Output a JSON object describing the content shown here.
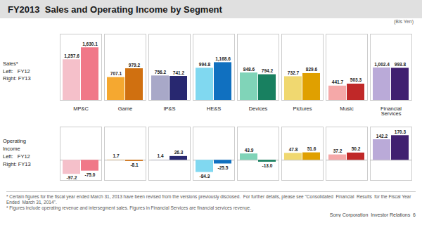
{
  "chart_data": [
    {
      "type": "bar",
      "title": "FY2013  Sales and Operating Income by Segment",
      "categories": [
        "MP&C",
        "Game",
        "IP&S",
        "HE&S",
        "Devices",
        "Pictures",
        "Music",
        "Financial\nServices"
      ],
      "series": [
        {
          "name": "FY12",
          "colors": [
            "#f5c0ca",
            "#f5a830",
            "#a8a8c8",
            "#80d8f0",
            "#80d4b8",
            "#f0d870",
            "#f5a8a8",
            "#baaad8"
          ],
          "values": [
            1257.6,
            707.1,
            756.2,
            994.8,
            848.6,
            732.7,
            441.7,
            1002.4
          ],
          "value_labels": [
            "1,257.6",
            "707.1",
            "756.2",
            "994.8",
            "848.6",
            "732.7",
            "441.7",
            "1,002.4"
          ]
        },
        {
          "name": "FY13",
          "colors": [
            "#f07888",
            "#d07010",
            "#282870",
            "#1070c0",
            "#188060",
            "#e0a000",
            "#c02828",
            "#402070"
          ],
          "values": [
            1630.1,
            979.2,
            741.2,
            1168.6,
            794.2,
            829.6,
            503.3,
            993.8
          ],
          "value_labels": [
            "1,630.1",
            "979.2",
            "741.2",
            "1,168.6",
            "794.2",
            "829.6",
            "503.3",
            "993.8"
          ]
        }
      ],
      "ylabel": "Sales*\nLeft:   FY12\nRight: FY13",
      "ylim": [
        0,
        2050
      ],
      "data_labels": true,
      "tick_labels": "x",
      "annotations": [
        "(Bls Yen)"
      ]
    },
    {
      "type": "bar",
      "categories": [
        "MP&C",
        "Game",
        "IP&S",
        "HE&S",
        "Devices",
        "Pictures",
        "Music",
        "Financial\nServices"
      ],
      "series": [
        {
          "name": "FY12",
          "colors": [
            "#f5c0ca",
            "#f5a830",
            "#a8a8c8",
            "#80d8f0",
            "#80d4b8",
            "#f0d870",
            "#f5a8a8",
            "#baaad8"
          ],
          "values": [
            -97.2,
            1.7,
            1.4,
            -84.3,
            43.9,
            47.8,
            37.2,
            142.2
          ],
          "value_labels": [
            "-97.2",
            "1.7",
            "1.4",
            "-84.3",
            "43.9",
            "47.8",
            "37.2",
            "142.2"
          ]
        },
        {
          "name": "FY13",
          "colors": [
            "#f07888",
            "#d07010",
            "#282870",
            "#1070c0",
            "#188060",
            "#e0a000",
            "#c02828",
            "#402070"
          ],
          "values": [
            -75.0,
            -8.1,
            26.3,
            -25.5,
            -13.0,
            51.6,
            50.2,
            170.3
          ],
          "value_labels": [
            "-75.0",
            "-8.1",
            "26.3",
            "-25.5",
            "-13.0",
            "51.6",
            "50.2",
            "170.3"
          ]
        }
      ],
      "ylabel": "Operating\nIncome\nLeft:   FY12\nRight: FY13",
      "ylim": [
        -140,
        230
      ],
      "data_labels": true,
      "tick_labels": false,
      "annotations": [
        "* Certain figures for the fiscal year ended March 31, 2013 have been revised from the versions previously disclosed.  For further details, please see \"Consolidated  Financial  Results  for the Fiscal Year Ended  March 31, 2014\".",
        "* Figures include operating revenue and intersegment sales. Figures in Financial Services are financial services revenue.",
        "Sony Corporation  Investor Relations  6"
      ]
    }
  ]
}
